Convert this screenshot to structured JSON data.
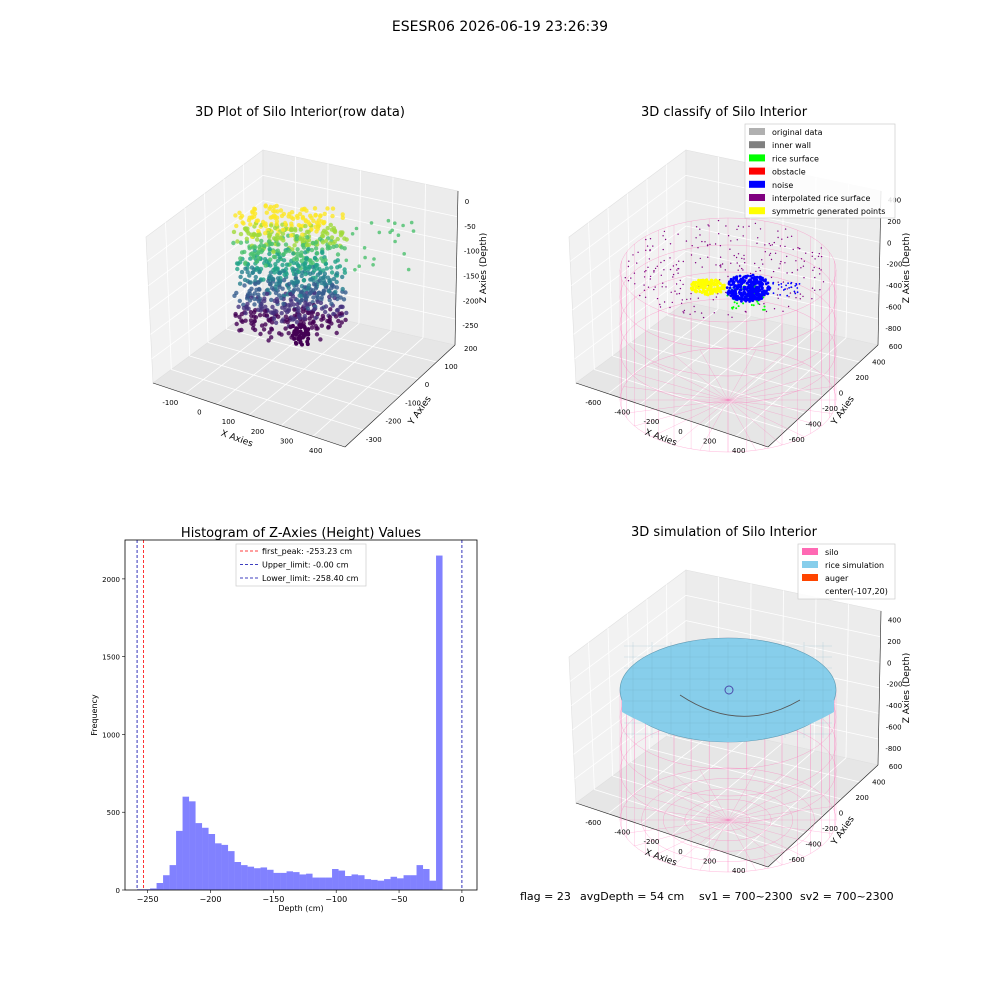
{
  "figure": {
    "suptitle": "ESESR06 2026-06-19 23:26:39",
    "footer": {
      "flag": "flag = 23",
      "avg_depth": "avgDepth = 54 cm",
      "sv1": "sv1 = 700~2300",
      "sv2": "sv2 = 700~2300"
    }
  },
  "colors": {
    "hist_bar": "#4b4bff",
    "peak_line": "#ff0000",
    "limit_line": "#0000aa",
    "silo": "#ff69b4",
    "rice_simulation": "#87ceeb",
    "auger": "#ff4500",
    "rice_surface": "#00ff00",
    "noise": "#0000ff",
    "symmetric": "#ffff00",
    "original": "#b0b0b0",
    "inner_wall": "#808080",
    "obstacle": "#ff0000",
    "interpolated": "#800080"
  },
  "chart_data": [
    {
      "type": "scatter",
      "title": "3D Plot of Silo Interior(row data)",
      "xlabel": "X Axies",
      "ylabel": "Y Axies",
      "zlabel": "Z Axies (Depth)",
      "x_ticks": [
        "-100",
        "0",
        "100",
        "200",
        "300",
        "400"
      ],
      "y_ticks": [
        "-300",
        "-200",
        "-100",
        "0",
        "100",
        "200"
      ],
      "z_ticks": [
        "0",
        "-50",
        "-100",
        "-150",
        "-200",
        "-250"
      ],
      "xlim": [
        -170,
        420
      ],
      "ylim": [
        -330,
        230
      ],
      "zlim": [
        -280,
        10
      ],
      "colormap": "viridis"
    },
    {
      "type": "scatter",
      "title": "3D classify of Silo Interior",
      "xlabel": "X Axies",
      "ylabel": "Y Axies",
      "zlabel": "Z Axies (Depth)",
      "x_ticks": [
        "-600",
        "-400",
        "-200",
        "0",
        "200",
        "400"
      ],
      "y_ticks": [
        "-600",
        "-400",
        "-200",
        "0",
        "200",
        "400",
        "600"
      ],
      "z_ticks": [
        "400",
        "200",
        "0",
        "-200",
        "-400",
        "-600",
        "-800"
      ],
      "legend": [
        "original data",
        "inner wall",
        "rice surface",
        "obstacle",
        "noise",
        "interpolated rice surface",
        "symmetric generated points"
      ],
      "legend_placement": "top-right"
    },
    {
      "type": "bar",
      "title": "Histogram of Z-Axies (Height) Values",
      "xlabel": "Depth (cm)",
      "ylabel": "Frequency",
      "xlim": [
        -268,
        12
      ],
      "ylim": [
        0,
        2250
      ],
      "x_ticks": [
        -250,
        -200,
        -150,
        -100,
        -50,
        0
      ],
      "y_ticks": [
        0,
        500,
        1000,
        1500,
        2000
      ],
      "bin_width": 5.17,
      "bin_start": -258.4,
      "values": [
        5,
        5,
        10,
        45,
        95,
        160,
        380,
        600,
        570,
        430,
        400,
        360,
        300,
        290,
        250,
        180,
        160,
        150,
        140,
        145,
        130,
        110,
        110,
        120,
        115,
        100,
        105,
        80,
        80,
        80,
        135,
        125,
        90,
        100,
        95,
        70,
        65,
        60,
        70,
        85,
        75,
        95,
        95,
        160,
        135,
        60,
        2150
      ],
      "lines": [
        {
          "label": "first_peak: -253.23 cm",
          "x": -253.23,
          "color": "#ff0000"
        },
        {
          "label": "Upper_limit: -0.00 cm",
          "x": 0.0,
          "color": "#0000aa"
        },
        {
          "label": "Lower_limit: -258.40 cm",
          "x": -258.4,
          "color": "#0000aa"
        }
      ],
      "legend_placement": "top-center"
    },
    {
      "type": "scatter",
      "title": "3D simulation of Silo Interior",
      "xlabel": "X Axies",
      "ylabel": "Y Axies",
      "zlabel": "Z Axies (Depth)",
      "x_ticks": [
        "-600",
        "-400",
        "-200",
        "0",
        "200",
        "400"
      ],
      "y_ticks": [
        "-600",
        "-400",
        "-200",
        "0",
        "200",
        "400",
        "600"
      ],
      "z_ticks": [
        "400",
        "200",
        "0",
        "-200",
        "-400",
        "-600",
        "-800"
      ],
      "legend": [
        "silo",
        "rice simulation",
        "auger",
        "center(-107,20)"
      ],
      "legend_placement": "top-right"
    }
  ]
}
